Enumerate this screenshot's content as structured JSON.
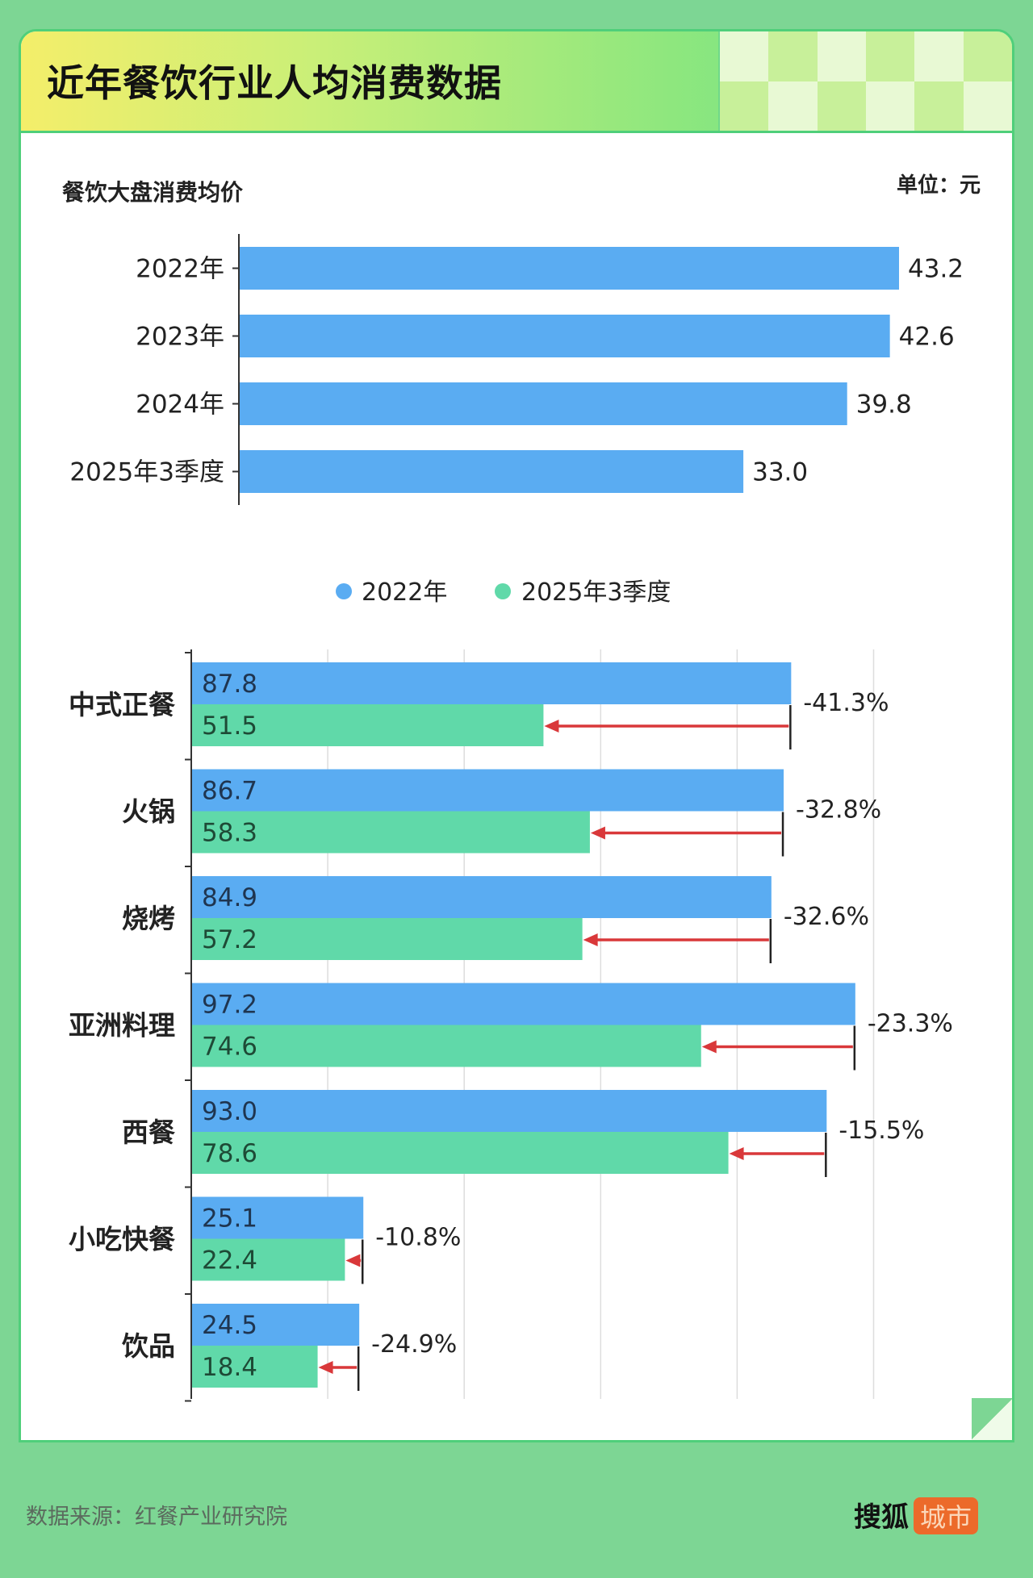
{
  "title": "近年餐饮行业人均消费数据",
  "footer": {
    "source": "数据来源：红餐产业研究院",
    "logo_text": "搜狐",
    "logo_badge": "城市"
  },
  "colors": {
    "series_2022": "#5aacf2",
    "series_2025q3": "#60d9a9",
    "arrow": "#d9383a",
    "background": "#7dd694"
  },
  "chart_data": [
    {
      "type": "bar",
      "orientation": "horizontal",
      "title": "餐饮大盘消费均价",
      "unit_label": "单位：元",
      "categories": [
        "2022年",
        "2023年",
        "2024年",
        "2025年3季度"
      ],
      "values": [
        43.2,
        42.6,
        39.8,
        33.0
      ],
      "value_labels": [
        "43.2",
        "42.6",
        "39.8",
        "33.0"
      ],
      "xlim": [
        0,
        45
      ],
      "grid": false
    },
    {
      "type": "bar",
      "orientation": "horizontal",
      "legend_position": "top",
      "categories": [
        "中式正餐",
        "火锅",
        "烧烤",
        "亚洲料理",
        "西餐",
        "小吃快餐",
        "饮品"
      ],
      "series": [
        {
          "name": "2022年",
          "values": [
            87.8,
            86.7,
            84.9,
            97.2,
            93.0,
            25.1,
            24.5
          ],
          "labels": [
            "87.8",
            "86.7",
            "84.9",
            "97.2",
            "93.0",
            "25.1",
            "24.5"
          ]
        },
        {
          "name": "2025年3季度",
          "values": [
            51.5,
            58.3,
            57.2,
            74.6,
            78.6,
            22.4,
            18.4
          ],
          "labels": [
            "51.5",
            "58.3",
            "57.2",
            "74.6",
            "78.6",
            "22.4",
            "18.4"
          ]
        }
      ],
      "change_labels": [
        "-41.3%",
        "-32.8%",
        "-32.6%",
        "-23.3%",
        "-15.5%",
        "-10.8%",
        "-24.9%"
      ],
      "xlim": [
        0,
        100
      ],
      "grid": true
    }
  ]
}
